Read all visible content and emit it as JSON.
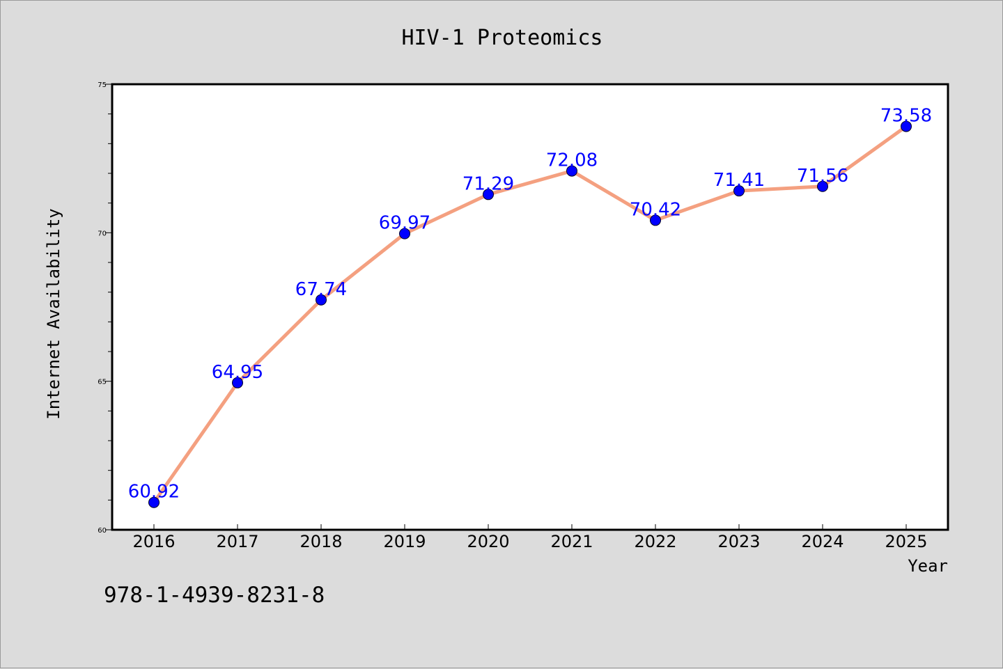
{
  "chart_data": {
    "type": "line",
    "title": "HIV-1 Proteomics",
    "xlabel": "Year",
    "ylabel": "Internet Availability",
    "categories": [
      "2016",
      "2017",
      "2018",
      "2019",
      "2020",
      "2021",
      "2022",
      "2023",
      "2024",
      "2025"
    ],
    "values": [
      60.92,
      64.95,
      67.74,
      69.97,
      71.29,
      72.08,
      70.42,
      71.41,
      71.56,
      73.58
    ],
    "data_labels": [
      "60.92",
      "64.95",
      "67.74",
      "69.97",
      "71.29",
      "72.08",
      "70.42",
      "71.41",
      "71.56",
      "73.58"
    ],
    "ylim": [
      60,
      75
    ],
    "yticks": [
      "60",
      "65",
      "70",
      "75"
    ],
    "grid": false,
    "line_color": "#f4a080",
    "marker_color": "#0000ff",
    "label_color": "#0000ff"
  },
  "footer": {
    "text": "978-1-4939-8231-8"
  }
}
